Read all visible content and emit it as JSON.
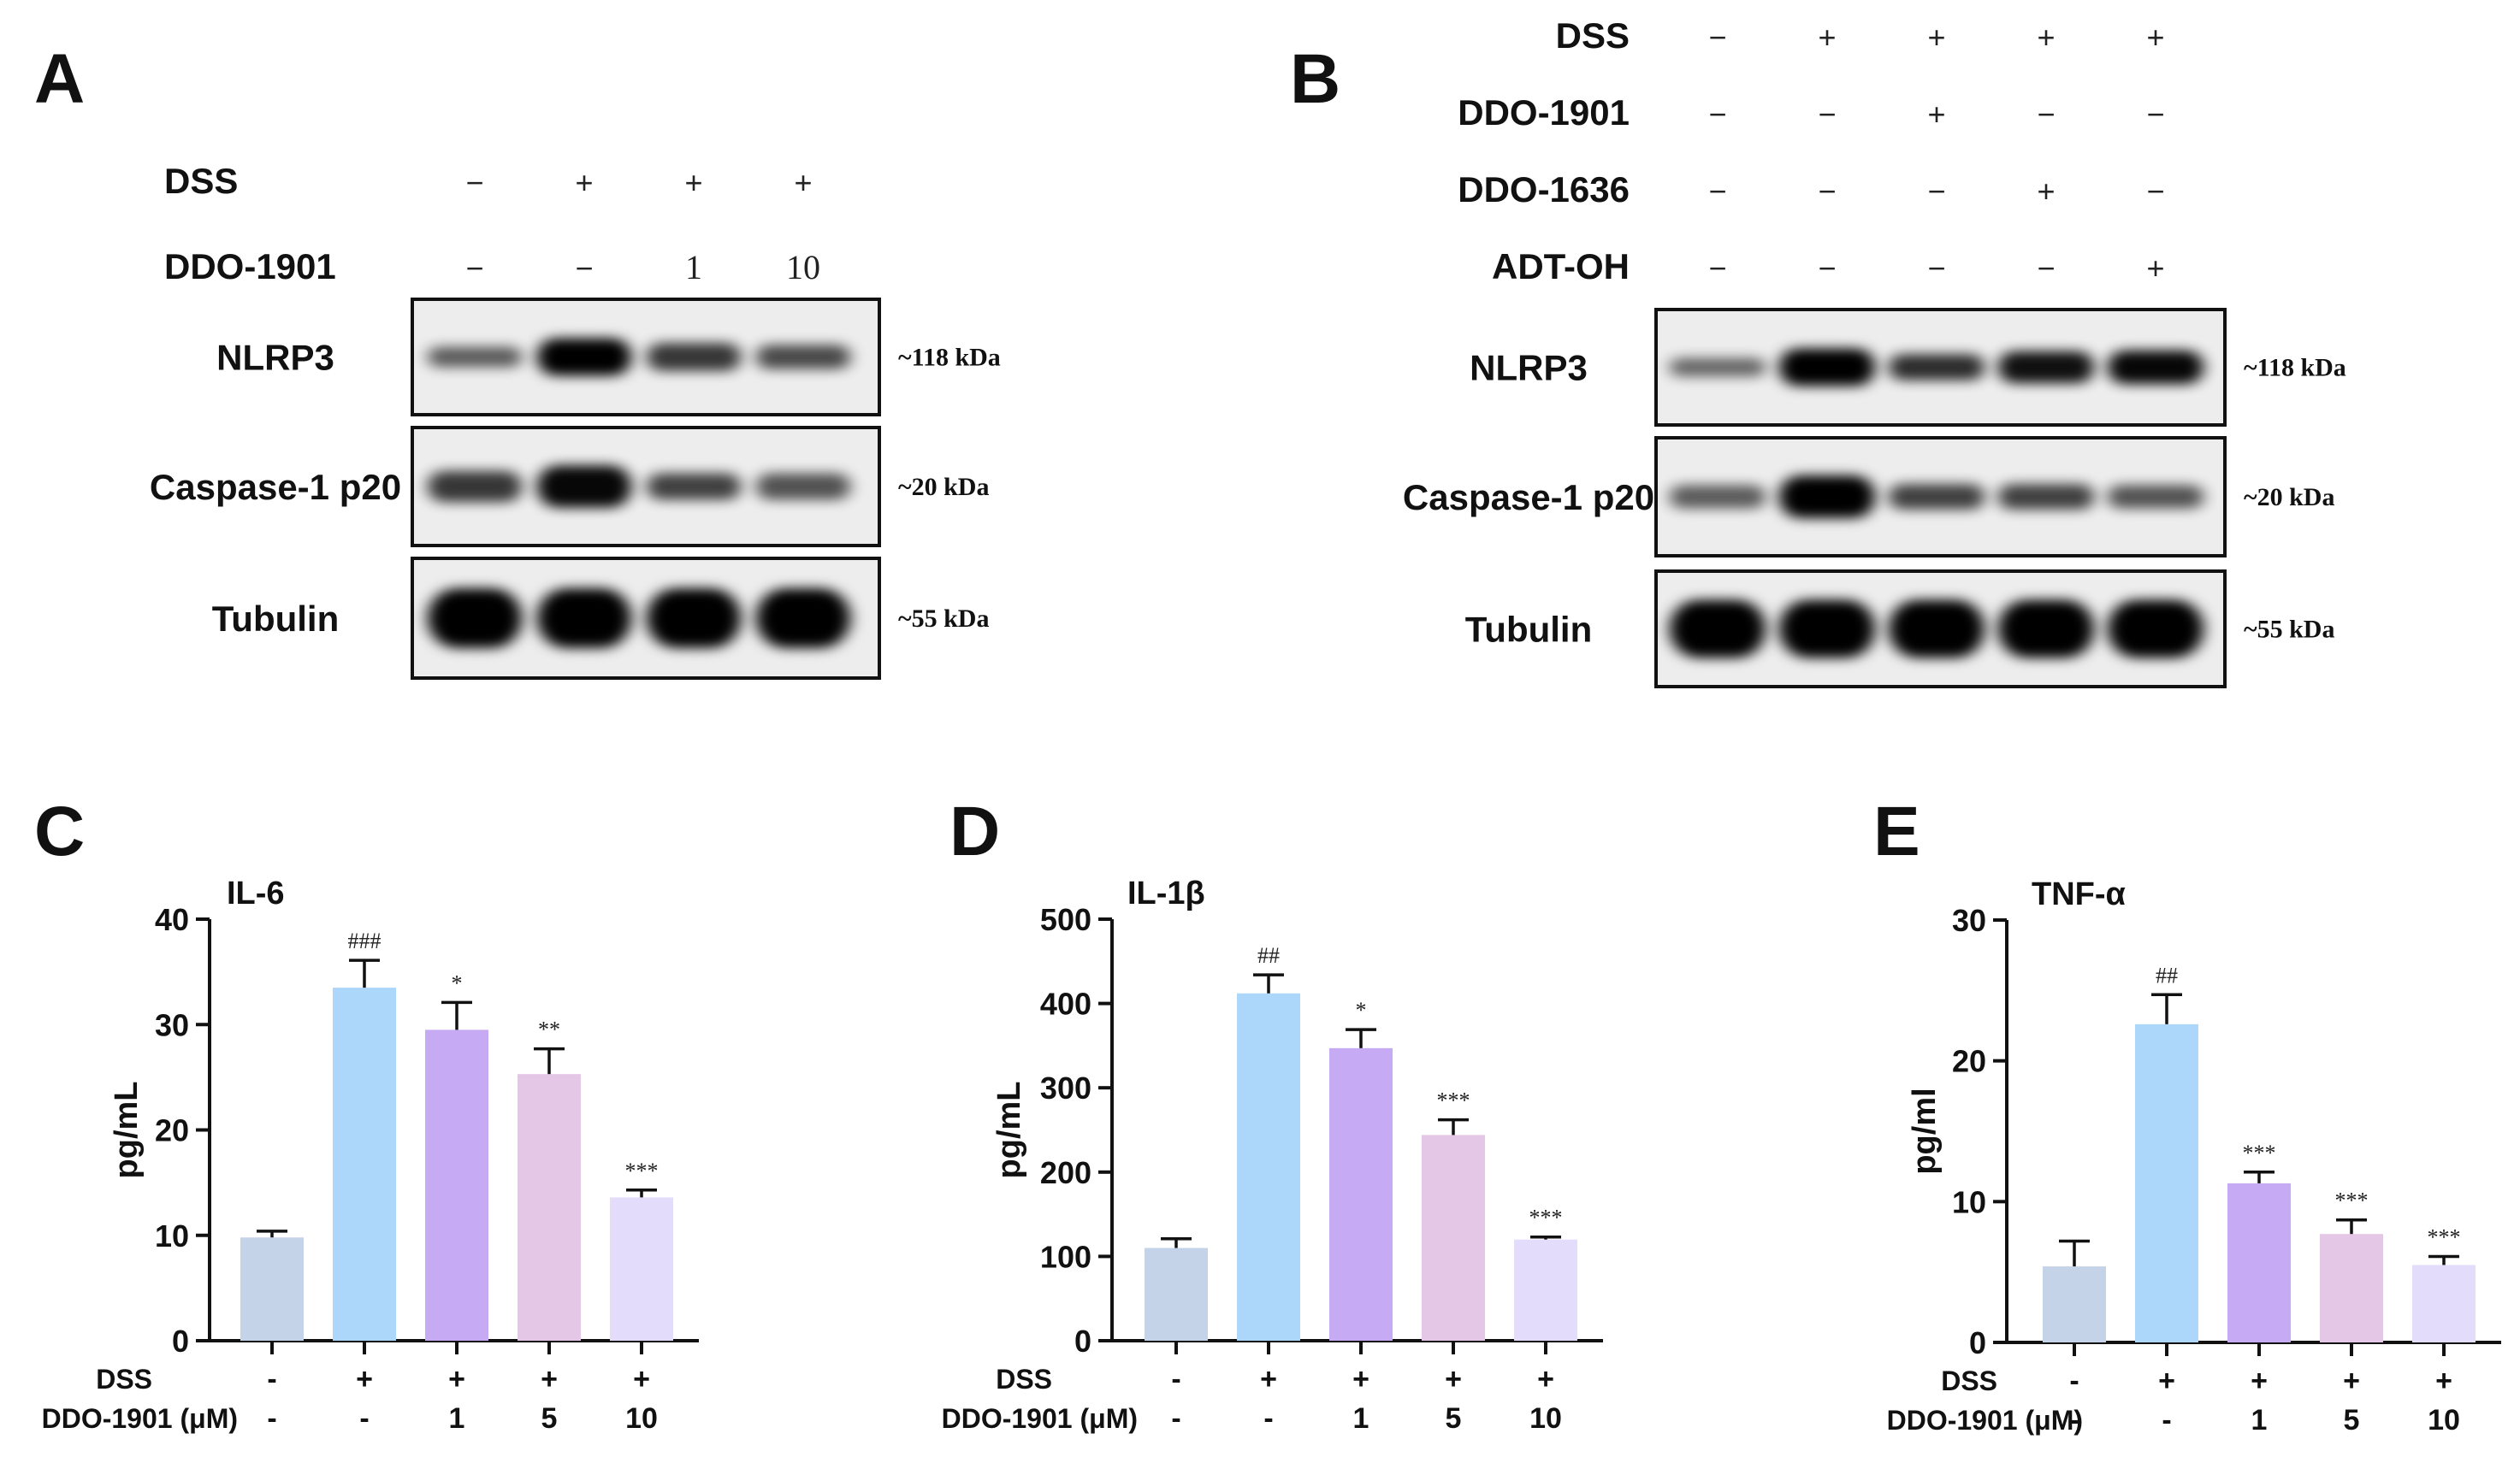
{
  "panel_letters": [
    "A",
    "B",
    "C",
    "D",
    "E"
  ],
  "blot_A": {
    "panel": "A",
    "conditions": [
      {
        "name": "DSS",
        "values": [
          "−",
          "+",
          "+",
          "+"
        ]
      },
      {
        "name": "DDO-1901",
        "values": [
          "−",
          "−",
          "1",
          "10"
        ]
      }
    ],
    "rows": [
      {
        "label": "NLRP3",
        "mw": "~118 kDa",
        "intensity": [
          0.45,
          1.0,
          0.65,
          0.55
        ],
        "thickness": [
          0.55,
          1.0,
          0.75,
          0.65
        ]
      },
      {
        "label": "Caspase-1 p20",
        "mw": "~20 kDa",
        "intensity": [
          0.65,
          0.9,
          0.6,
          0.5
        ],
        "thickness": [
          0.7,
          0.95,
          0.6,
          0.6
        ]
      },
      {
        "label": "Tubulin",
        "mw": "~55 kDa",
        "intensity": [
          0.95,
          0.95,
          0.95,
          0.95
        ],
        "thickness": [
          1.0,
          1.0,
          1.0,
          1.0
        ]
      }
    ]
  },
  "blot_B": {
    "panel": "B",
    "conditions": [
      {
        "name": "DSS",
        "values": [
          "−",
          "+",
          "+",
          "+",
          "+"
        ]
      },
      {
        "name": "DDO-1901",
        "values": [
          "−",
          "−",
          "+",
          "−",
          "−"
        ]
      },
      {
        "name": "DDO-1636",
        "values": [
          "−",
          "−",
          "−",
          "+",
          "−"
        ]
      },
      {
        "name": "ADT-OH",
        "values": [
          "−",
          "−",
          "−",
          "−",
          "+"
        ]
      }
    ],
    "rows": [
      {
        "label": "NLRP3",
        "mw": "~118 kDa",
        "intensity": [
          0.4,
          0.95,
          0.7,
          0.85,
          0.9
        ],
        "thickness": [
          0.5,
          1.0,
          0.7,
          0.85,
          0.9
        ]
      },
      {
        "label": "Caspase-1 p20",
        "mw": "~20 kDa",
        "intensity": [
          0.45,
          0.95,
          0.6,
          0.6,
          0.5
        ],
        "thickness": [
          0.55,
          1.0,
          0.6,
          0.6,
          0.55
        ]
      },
      {
        "label": "Tubulin",
        "mw": "~55 kDa",
        "intensity": [
          0.95,
          0.95,
          0.95,
          0.95,
          0.95
        ],
        "thickness": [
          1.0,
          1.0,
          1.0,
          1.0,
          1.0
        ]
      }
    ]
  },
  "chart_data": [
    {
      "panel": "C",
      "type": "bar",
      "title": "IL-6",
      "ylabel": "pg/mL",
      "ylim": [
        0,
        40
      ],
      "yticks": [
        0,
        10,
        20,
        30,
        40
      ],
      "values": [
        9.8,
        33.5,
        29.5,
        25.3,
        13.6
      ],
      "errors": [
        0.6,
        2.6,
        2.6,
        2.4,
        0.7
      ],
      "annotations": [
        "",
        "###",
        "*",
        "**",
        "***"
      ],
      "colors": [
        "#c5d3e8",
        "#add6fb",
        "#c6aaf3",
        "#e4c6e6",
        "#e3dcfb"
      ],
      "row_labels": [
        "DSS",
        "DDO-1901 (μM)"
      ],
      "dss": [
        "-",
        "+",
        "+",
        "+",
        "+"
      ],
      "dose": [
        "-",
        "-",
        "1",
        "5",
        "10"
      ]
    },
    {
      "panel": "D",
      "type": "bar",
      "title": "IL-1β",
      "ylabel": "pg/mL",
      "ylim": [
        0,
        500
      ],
      "yticks": [
        0,
        100,
        200,
        300,
        400,
        500
      ],
      "values": [
        110,
        412,
        347,
        244,
        120
      ],
      "errors": [
        11,
        22,
        22,
        18,
        3
      ],
      "annotations": [
        "",
        "##",
        "*",
        "***",
        "***"
      ],
      "colors": [
        "#c5d3e8",
        "#add6fb",
        "#c6aaf3",
        "#e4c6e6",
        "#e3dcfb"
      ],
      "row_labels": [
        "DSS",
        "DDO-1901 (μM)"
      ],
      "dss": [
        "-",
        "+",
        "+",
        "+",
        "+"
      ],
      "dose": [
        "-",
        "-",
        "1",
        "5",
        "10"
      ]
    },
    {
      "panel": "E",
      "type": "bar",
      "title": "TNF-α",
      "ylabel": "pg/ml",
      "ylim": [
        0,
        30
      ],
      "yticks": [
        0,
        10,
        20,
        30
      ],
      "values": [
        5.4,
        22.6,
        11.3,
        7.7,
        5.5
      ],
      "errors": [
        1.8,
        2.1,
        0.8,
        1.0,
        0.6
      ],
      "annotations": [
        "",
        "##",
        "***",
        "***",
        "***"
      ],
      "colors": [
        "#c5d3e8",
        "#add6fb",
        "#c6aaf3",
        "#e4c6e6",
        "#e3dcfb"
      ],
      "row_labels": [
        "DSS",
        "DDO-1901 (μM)"
      ],
      "dss": [
        "-",
        "+",
        "+",
        "+",
        "+"
      ],
      "dose": [
        "-",
        "-",
        "1",
        "5",
        "10"
      ]
    }
  ]
}
